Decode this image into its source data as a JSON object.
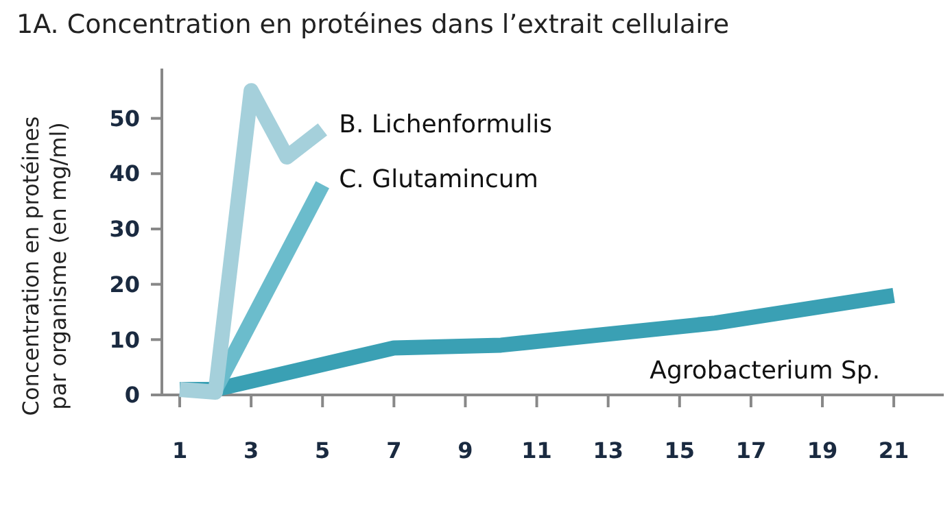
{
  "chart_data": {
    "type": "line",
    "title": "1A. Concentration en protéines dans l’extrait cellulaire",
    "ylabel": "Concentration  en protéines\npar organisme (en mg/ml)",
    "xlim": [
      0.5,
      22.4
    ],
    "xticks": [
      1,
      3,
      5,
      7,
      9,
      11,
      13,
      15,
      17,
      19,
      21
    ],
    "ylim": [
      0,
      59
    ],
    "yticks": [
      0,
      10,
      20,
      30,
      40,
      50
    ],
    "grid": false,
    "line_style": "solid",
    "series": [
      {
        "name": "Agrobacterium Sp.",
        "color": "#3aa0b4",
        "x": [
          1,
          2,
          7,
          10,
          16,
          21
        ],
        "values": [
          1,
          1,
          8.5,
          9,
          13,
          18
        ]
      },
      {
        "name": "C. Glutamincum",
        "color": "#6bbccc",
        "x": [
          2,
          5
        ],
        "values": [
          1,
          38
        ]
      },
      {
        "name": "B. Lichenformulis",
        "color": "#a5d0db",
        "x": [
          1,
          2,
          3,
          4,
          5
        ],
        "values": [
          1,
          0.5,
          55,
          43,
          48
        ]
      }
    ]
  }
}
